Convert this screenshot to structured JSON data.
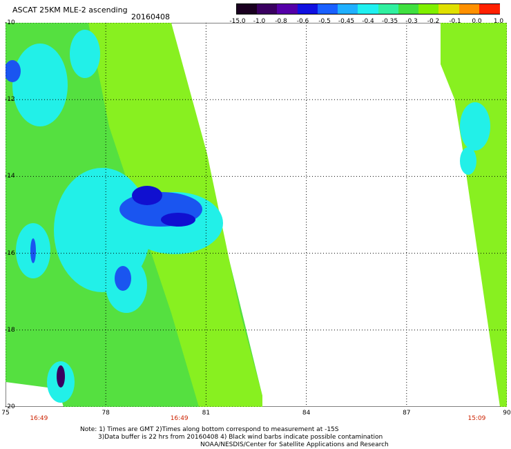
{
  "header": {
    "title": "ASCAT 25KM MLE-2 ascending",
    "date": "20160408"
  },
  "colorbar": {
    "labels": [
      "-15.0",
      "-1.0",
      "-0.8",
      "-0.6",
      "-0.5",
      "-0.45",
      "-0.4",
      "-0.35",
      "-0.3",
      "-0.2",
      "-0.1",
      "0.0",
      "1.0"
    ],
    "colors": [
      "#1a0020",
      "#3a0060",
      "#5500a8",
      "#1010e0",
      "#1a60ff",
      "#20b0ff",
      "#20f0f0",
      "#30f0a0",
      "#40e040",
      "#80f000",
      "#e0e000",
      "#ff9000",
      "#ff2000"
    ]
  },
  "axes": {
    "y_ticks": [
      "-10",
      "-12",
      "-14",
      "-16",
      "-18",
      "-20"
    ],
    "x_ticks": [
      "75",
      "78",
      "81",
      "84",
      "87",
      "90"
    ],
    "times": [
      {
        "label": "16:49",
        "lon": 76
      },
      {
        "label": "16:49",
        "lon": 80.2
      },
      {
        "label": "15:09",
        "lon": 89.1
      }
    ]
  },
  "map": {
    "lon_range": [
      75,
      90
    ],
    "lat_range": [
      -10,
      -20
    ],
    "swath_colors": {
      "green": "#55e040",
      "lime": "#88f020",
      "cyan": "#22f0e8",
      "blue": "#1a55f0",
      "deep": "#1010d0"
    }
  },
  "notes": {
    "line1": "Note: 1) Times are GMT 2)Times along bottom correspond to measurement at -15S",
    "line2": "3)Data buffer is 22 hrs from 20160408 4) Black wind barbs indicate possible contamination",
    "line3": "NOAA/NESDIS/Center for Satellite Applications and Research"
  }
}
